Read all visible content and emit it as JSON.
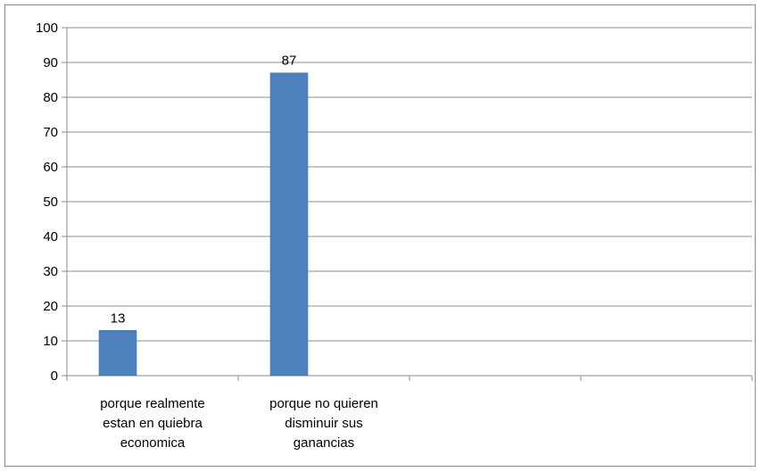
{
  "chart_data": {
    "type": "bar",
    "categories": [
      [
        "porque realmente",
        "estan en quiebra",
        "economica"
      ],
      [
        "porque no quieren",
        "disminuir sus",
        "ganancias"
      ],
      [],
      []
    ],
    "values": [
      13,
      87,
      null,
      null
    ],
    "data_labels": [
      "13",
      "87",
      "",
      ""
    ],
    "ylim": [
      0,
      100
    ],
    "yticks": [
      0,
      10,
      20,
      30,
      40,
      50,
      60,
      70,
      80,
      90,
      100
    ],
    "title": "",
    "xlabel": "",
    "ylabel": "",
    "grid": true,
    "legend": "none",
    "colors": {
      "bar": "#4f81bd",
      "bar_edge": "#3f6fa8",
      "gridline": "#8c8c8c",
      "axis": "#8c8c8c",
      "frame": "#8c8c8c"
    }
  }
}
